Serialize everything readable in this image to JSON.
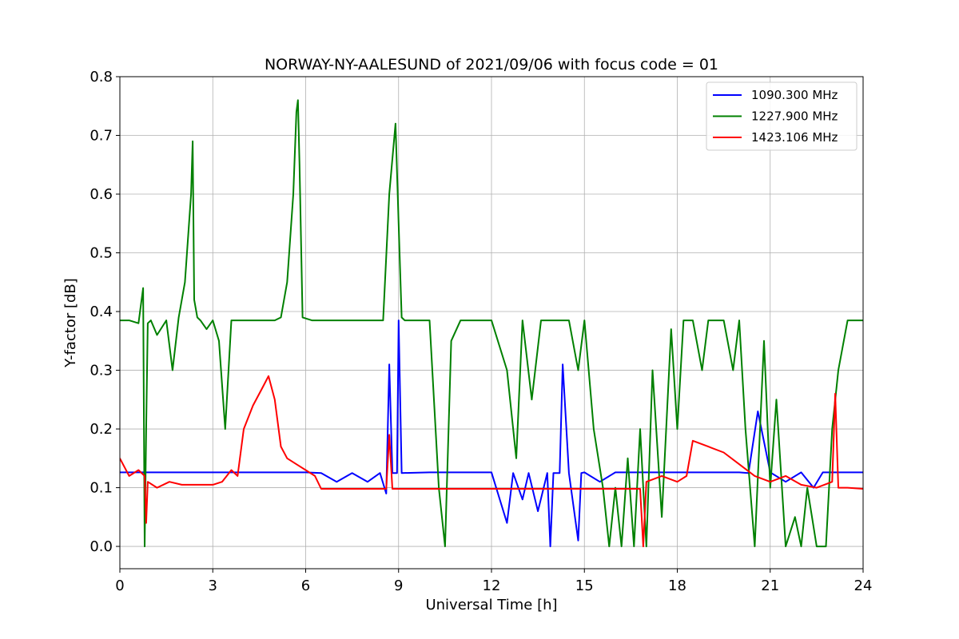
{
  "chart_data": {
    "type": "line",
    "title": "NORWAY-NY-AALESUND of 2021/09/06 with focus code = 01",
    "xlabel": "Universal Time [h]",
    "ylabel": "Y-factor [dB]",
    "xlim": [
      0,
      24
    ],
    "ylim": [
      -0.038,
      0.8
    ],
    "xticks": [
      0,
      3,
      6,
      9,
      12,
      15,
      18,
      21,
      24
    ],
    "yticks": [
      0.0,
      0.1,
      0.2,
      0.3,
      0.4,
      0.5,
      0.6,
      0.7,
      0.8
    ],
    "xtick_labels": [
      "0",
      "3",
      "6",
      "9",
      "12",
      "15",
      "18",
      "21",
      "24"
    ],
    "ytick_labels": [
      "0.0",
      "0.1",
      "0.2",
      "0.3",
      "0.4",
      "0.5",
      "0.6",
      "0.7",
      "0.8"
    ],
    "grid": true,
    "legend_position": "top-right",
    "series": [
      {
        "name": "1090.300 MHz",
        "color": "#0000ff",
        "x": [
          0.0,
          0.9,
          1.0,
          3.0,
          6.0,
          6.5,
          7.0,
          7.5,
          8.0,
          8.4,
          8.6,
          8.7,
          8.8,
          8.95,
          9.0,
          9.1,
          10.0,
          12.0,
          12.5,
          12.7,
          13.0,
          13.2,
          13.5,
          13.8,
          13.9,
          14.0,
          14.2,
          14.3,
          14.5,
          14.8,
          14.9,
          15.0,
          15.5,
          16.0,
          17.0,
          18.0,
          19.5,
          20.0,
          20.3,
          20.6,
          21.0,
          21.5,
          22.0,
          22.4,
          22.7,
          23.0,
          24.0
        ],
        "y": [
          0.126,
          0.126,
          0.126,
          0.126,
          0.126,
          0.125,
          0.11,
          0.125,
          0.11,
          0.125,
          0.09,
          0.31,
          0.125,
          0.125,
          0.385,
          0.125,
          0.126,
          0.126,
          0.04,
          0.125,
          0.08,
          0.125,
          0.06,
          0.125,
          0.0,
          0.125,
          0.125,
          0.31,
          0.125,
          0.01,
          0.125,
          0.126,
          0.11,
          0.126,
          0.126,
          0.126,
          0.126,
          0.126,
          0.125,
          0.23,
          0.126,
          0.11,
          0.126,
          0.1,
          0.126,
          0.126,
          0.126
        ]
      },
      {
        "name": "1227.900 MHz",
        "color": "#008000",
        "x": [
          0.0,
          0.3,
          0.6,
          0.75,
          0.8,
          0.85,
          0.9,
          1.0,
          1.2,
          1.5,
          1.7,
          1.9,
          2.1,
          2.3,
          2.35,
          2.4,
          2.5,
          2.6,
          2.8,
          3.0,
          3.2,
          3.4,
          3.6,
          3.8,
          4.0,
          4.5,
          5.0,
          5.2,
          5.4,
          5.6,
          5.7,
          5.75,
          5.8,
          5.9,
          6.2,
          6.5,
          7.0,
          7.5,
          8.0,
          8.5,
          8.7,
          8.9,
          9.0,
          9.1,
          9.2,
          10.0,
          10.3,
          10.5,
          10.7,
          11.0,
          12.0,
          12.5,
          12.8,
          13.0,
          13.3,
          13.6,
          14.0,
          14.5,
          14.8,
          15.0,
          15.3,
          15.6,
          15.8,
          16.0,
          16.2,
          16.4,
          16.6,
          16.8,
          17.0,
          17.2,
          17.5,
          17.8,
          18.0,
          18.2,
          18.5,
          18.8,
          19.0,
          19.5,
          19.8,
          20.0,
          20.2,
          20.5,
          20.8,
          21.0,
          21.2,
          21.5,
          21.8,
          22.0,
          22.2,
          22.5,
          22.8,
          23.0,
          23.2,
          23.5,
          24.0
        ],
        "y": [
          0.385,
          0.385,
          0.38,
          0.44,
          0.0,
          0.2,
          0.38,
          0.385,
          0.36,
          0.385,
          0.3,
          0.39,
          0.45,
          0.6,
          0.69,
          0.42,
          0.39,
          0.385,
          0.37,
          0.385,
          0.35,
          0.2,
          0.385,
          0.385,
          0.385,
          0.385,
          0.385,
          0.39,
          0.45,
          0.6,
          0.74,
          0.76,
          0.65,
          0.39,
          0.385,
          0.385,
          0.385,
          0.385,
          0.385,
          0.385,
          0.6,
          0.72,
          0.55,
          0.39,
          0.385,
          0.385,
          0.1,
          0.0,
          0.35,
          0.385,
          0.385,
          0.3,
          0.15,
          0.385,
          0.25,
          0.385,
          0.385,
          0.385,
          0.3,
          0.385,
          0.2,
          0.1,
          0.0,
          0.1,
          0.0,
          0.15,
          0.0,
          0.2,
          0.0,
          0.3,
          0.05,
          0.37,
          0.2,
          0.385,
          0.385,
          0.3,
          0.385,
          0.385,
          0.3,
          0.385,
          0.2,
          0.0,
          0.35,
          0.1,
          0.25,
          0.0,
          0.05,
          0.0,
          0.1,
          0.0,
          0.0,
          0.2,
          0.3,
          0.385,
          0.385
        ]
      },
      {
        "name": "1423.106 MHz",
        "color": "#ff0000",
        "x": [
          0.0,
          0.3,
          0.6,
          0.8,
          0.85,
          0.9,
          1.2,
          1.6,
          2.0,
          2.5,
          3.0,
          3.3,
          3.6,
          3.8,
          4.0,
          4.3,
          4.6,
          4.8,
          5.0,
          5.2,
          5.4,
          5.7,
          6.0,
          6.3,
          6.5,
          7.0,
          8.0,
          8.6,
          8.7,
          8.8,
          9.0,
          10.0,
          12.0,
          14.0,
          16.0,
          16.8,
          16.9,
          17.0,
          17.5,
          18.0,
          18.3,
          18.5,
          19.0,
          19.5,
          20.0,
          20.5,
          21.0,
          21.5,
          22.0,
          22.5,
          23.0,
          23.1,
          23.2,
          23.5,
          24.0
        ],
        "y": [
          0.15,
          0.12,
          0.13,
          0.12,
          0.04,
          0.11,
          0.1,
          0.11,
          0.105,
          0.105,
          0.105,
          0.11,
          0.13,
          0.12,
          0.2,
          0.24,
          0.27,
          0.29,
          0.25,
          0.17,
          0.15,
          0.14,
          0.13,
          0.12,
          0.098,
          0.098,
          0.098,
          0.098,
          0.19,
          0.098,
          0.098,
          0.098,
          0.098,
          0.098,
          0.098,
          0.098,
          0.0,
          0.11,
          0.12,
          0.11,
          0.12,
          0.18,
          0.17,
          0.16,
          0.14,
          0.12,
          0.11,
          0.12,
          0.105,
          0.1,
          0.11,
          0.26,
          0.1,
          0.1,
          0.098
        ]
      }
    ]
  }
}
